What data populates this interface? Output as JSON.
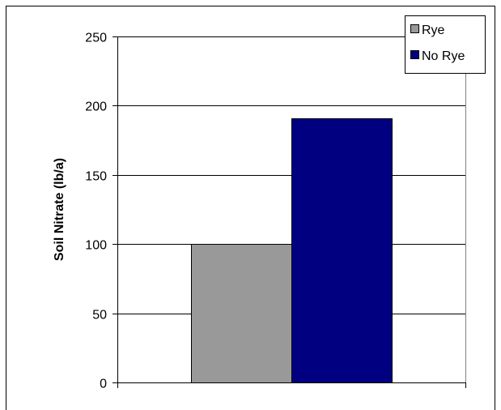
{
  "chart_data": {
    "type": "bar",
    "series": [
      {
        "name": "Rye",
        "values": [
          100
        ],
        "color": "#999999"
      },
      {
        "name": "No Rye",
        "values": [
          191
        ],
        "color": "#000080"
      }
    ],
    "categories": [
      ""
    ],
    "title": "",
    "xlabel": "",
    "ylabel": "Soil Nitrate (lb/a)",
    "ylim": [
      0,
      250
    ],
    "yticks": [
      "0",
      "50",
      "100",
      "150",
      "200",
      "250"
    ],
    "grid": true,
    "legend_position": "top-right"
  }
}
